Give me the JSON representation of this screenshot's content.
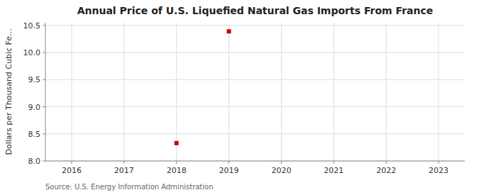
{
  "chart_data": {
    "type": "scatter",
    "title": "Annual Price of U.S. Liquefied Natural Gas Imports From France",
    "ylabel": "Dollars per Thousand Cubic Fe...",
    "annotations": [
      "Source: U.S. Energy Information Administration"
    ],
    "x": [
      2018,
      2019
    ],
    "values": [
      8.33,
      10.39
    ],
    "color": "#cc0000",
    "marker": "square",
    "xlim": [
      2015.5,
      2023.5
    ],
    "ylim": [
      8.0,
      10.55
    ],
    "xticks": [
      2016,
      2017,
      2018,
      2019,
      2020,
      2021,
      2022,
      2023
    ],
    "yticks": [
      {
        "value": 8.0,
        "label": "8.0"
      },
      8.5,
      {
        "value": 9.0,
        "label": "9.0"
      },
      9.5,
      {
        "value": 10.0,
        "label": "10.0"
      },
      10.5
    ],
    "grid": true
  }
}
